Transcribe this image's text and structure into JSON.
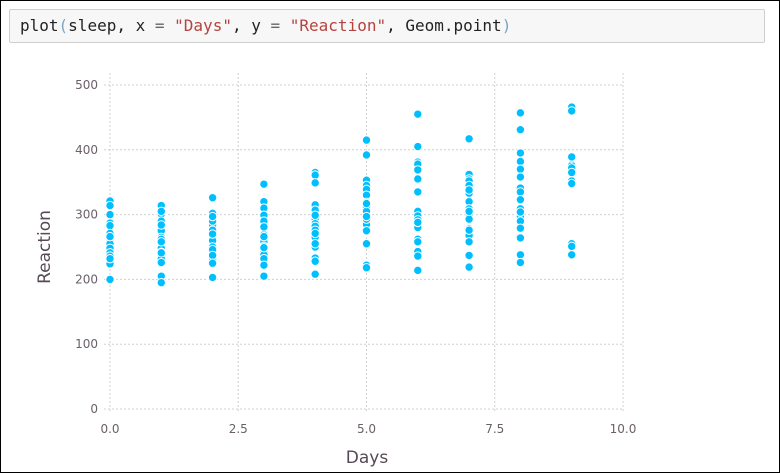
{
  "code": {
    "fn": "plot",
    "open": "(",
    "arg1": "sleep",
    "sep1": ", ",
    "xkw": "x",
    "eq": " = ",
    "xval": "\"Days\"",
    "sep2": ", ",
    "ykw": "y",
    "yval": "\"Reaction\"",
    "sep3": ", ",
    "geom": "Geom.point",
    "close": ")"
  },
  "chart_data": {
    "type": "scatter",
    "title": "",
    "xlabel": "Days",
    "ylabel": "Reaction",
    "xlim": [
      0,
      10
    ],
    "ylim": [
      0,
      500
    ],
    "xticks": [
      "0.0",
      "2.5",
      "5.0",
      "7.5",
      "10.0"
    ],
    "yticks": [
      "0",
      "100",
      "200",
      "300",
      "400",
      "500"
    ],
    "grid": true,
    "point_color": "#00bfff",
    "x": [
      0,
      0,
      0,
      0,
      0,
      0,
      0,
      0,
      0,
      0,
      0,
      0,
      0,
      0,
      0,
      0,
      0,
      0,
      1,
      1,
      1,
      1,
      1,
      1,
      1,
      1,
      1,
      1,
      1,
      1,
      1,
      1,
      1,
      1,
      1,
      1,
      2,
      2,
      2,
      2,
      2,
      2,
      2,
      2,
      2,
      2,
      2,
      2,
      2,
      2,
      2,
      2,
      2,
      2,
      3,
      3,
      3,
      3,
      3,
      3,
      3,
      3,
      3,
      3,
      3,
      3,
      3,
      3,
      3,
      3,
      3,
      3,
      4,
      4,
      4,
      4,
      4,
      4,
      4,
      4,
      4,
      4,
      4,
      4,
      4,
      4,
      4,
      4,
      4,
      4,
      5,
      5,
      5,
      5,
      5,
      5,
      5,
      5,
      5,
      5,
      5,
      5,
      5,
      5,
      5,
      5,
      5,
      5,
      6,
      6,
      6,
      6,
      6,
      6,
      6,
      6,
      6,
      6,
      6,
      6,
      6,
      6,
      6,
      6,
      6,
      6,
      7,
      7,
      7,
      7,
      7,
      7,
      7,
      7,
      7,
      7,
      7,
      7,
      7,
      7,
      7,
      7,
      7,
      7,
      8,
      8,
      8,
      8,
      8,
      8,
      8,
      8,
      8,
      8,
      8,
      8,
      8,
      8,
      8,
      8,
      8,
      8,
      9,
      9,
      9,
      9,
      9,
      9,
      9,
      9,
      9,
      9,
      9,
      9,
      9,
      9,
      9,
      9,
      9,
      9
    ],
    "y": [
      321,
      314,
      300,
      287,
      283,
      271,
      262,
      255,
      248,
      241,
      236,
      229,
      224,
      199,
      199,
      200,
      232,
      266,
      314,
      301,
      290,
      275,
      265,
      256,
      248,
      242,
      236,
      232,
      205,
      195,
      241,
      262,
      284,
      305,
      226,
      258,
      326,
      302,
      296,
      284,
      276,
      268,
      260,
      250,
      240,
      236,
      232,
      203,
      246,
      270,
      290,
      297,
      237,
      225,
      347,
      320,
      310,
      299,
      285,
      280,
      269,
      258,
      251,
      243,
      238,
      232,
      205,
      266,
      290,
      281,
      249,
      222,
      365,
      361,
      349,
      315,
      300,
      293,
      286,
      282,
      265,
      250,
      233,
      228,
      208,
      276,
      255,
      307,
      299,
      271,
      415,
      392,
      353,
      345,
      339,
      330,
      319,
      312,
      305,
      293,
      285,
      275,
      255,
      222,
      218,
      317,
      293,
      297,
      455,
      405,
      381,
      378,
      355,
      335,
      305,
      298,
      292,
      280,
      262,
      258,
      243,
      236,
      214,
      369,
      288,
      258,
      417,
      362,
      355,
      352,
      345,
      333,
      320,
      309,
      301,
      293,
      278,
      268,
      258,
      237,
      219,
      305,
      338,
      276,
      457,
      431,
      395,
      382,
      370,
      357,
      341,
      335,
      323,
      309,
      296,
      290,
      264,
      238,
      226,
      279,
      304,
      358,
      466,
      460,
      389,
      385,
      376,
      369,
      365,
      363,
      352,
      348,
      255,
      251,
      238,
      365,
      372,
      365,
      387,
      389
    ]
  }
}
